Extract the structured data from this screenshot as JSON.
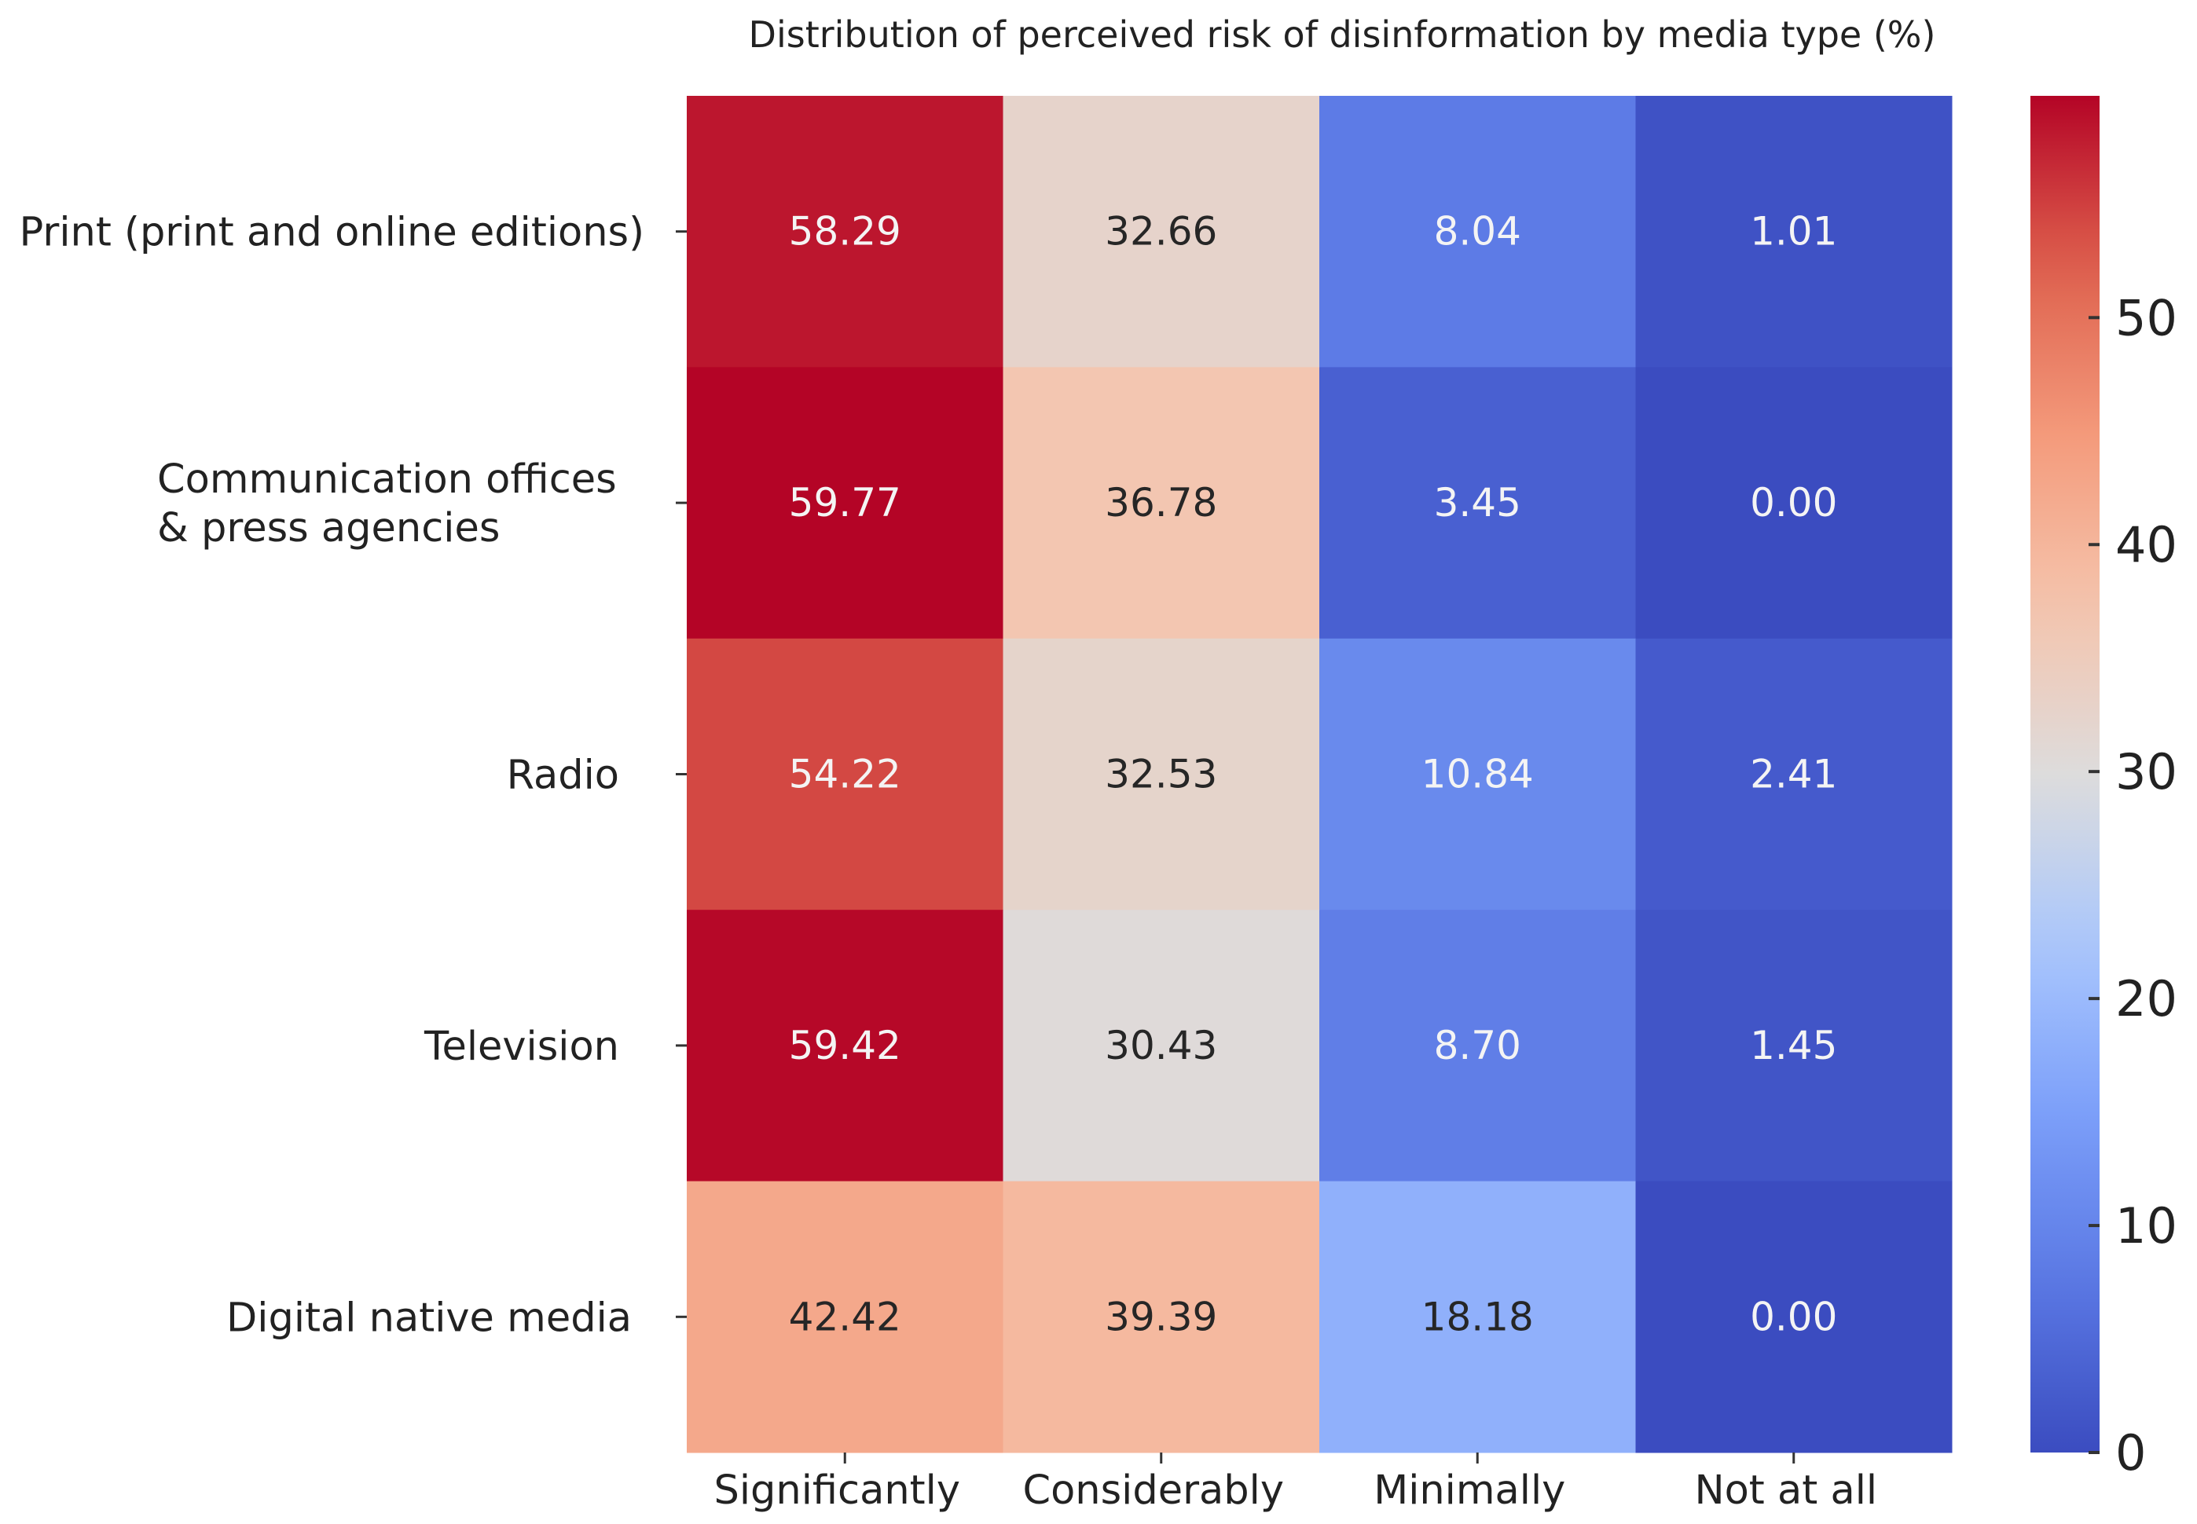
{
  "chart_data": {
    "type": "heatmap",
    "title": "Distribution of perceived risk of disinformation by media type (%)",
    "xlabel": "",
    "ylabel": "",
    "columns": [
      "Significantly",
      "Considerably",
      "Minimally",
      "Not at all"
    ],
    "rows": [
      {
        "label_lines": [
          "Print (print and online editions)"
        ],
        "values": [
          58.29,
          32.66,
          8.04,
          1.01
        ]
      },
      {
        "label_lines": [
          "Communication offices",
          "& press agencies"
        ],
        "values": [
          59.77,
          36.78,
          3.45,
          0.0
        ]
      },
      {
        "label_lines": [
          "Radio"
        ],
        "values": [
          54.22,
          32.53,
          10.84,
          2.41
        ]
      },
      {
        "label_lines": [
          "Television"
        ],
        "values": [
          59.42,
          30.43,
          8.7,
          1.45
        ]
      },
      {
        "label_lines": [
          "Digital native media"
        ],
        "values": [
          42.42,
          39.39,
          18.18,
          0.0
        ]
      }
    ],
    "colormap": "coolwarm",
    "vmin": 0,
    "vmax": 59.77,
    "colorbar_ticks": [
      0,
      10,
      20,
      30,
      40,
      50
    ],
    "value_format": "2 decimals"
  }
}
